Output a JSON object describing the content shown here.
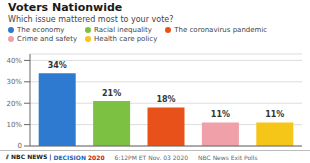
{
  "chart_data": {
    "type": "bar",
    "title": "Voters Nationwide",
    "subtitle": "Which issue mattered most to your vote?",
    "categories": [
      "The economy",
      "Racial inequality",
      "The coronavirus pandemic",
      "Crime and safety",
      "Health care policy"
    ],
    "values": [
      34,
      21,
      18,
      11,
      11
    ],
    "value_labels": [
      "34%",
      "21%",
      "18%",
      "11%",
      "11%"
    ],
    "colors": [
      "#2e7ad1",
      "#7dc142",
      "#e8521a",
      "#f0a0a8",
      "#f5c518"
    ],
    "ylim": [
      0,
      43
    ],
    "yticks": [
      0,
      {
        "value": 10,
        "label": "10%"
      },
      {
        "value": 20,
        "label": "20%"
      },
      {
        "value": 30,
        "label": "30%"
      },
      {
        "value": 40,
        "label": "40%"
      }
    ],
    "grid": true,
    "legend": "top",
    "data_labels": true,
    "tick_labels": "y",
    "annotations": [
      {
        "text": "⫽ NBC NEWS |",
        "color": "#222222"
      },
      {
        "text": "DECISION",
        "color": "#1a5fb4"
      },
      {
        "text": "2020",
        "color": "#cc1111"
      },
      {
        "text": "6:12PM ET Nov. 03 2020",
        "color": "#666666"
      },
      {
        "text": "NBC News Exit Polls",
        "color": "#666666"
      }
    ]
  }
}
